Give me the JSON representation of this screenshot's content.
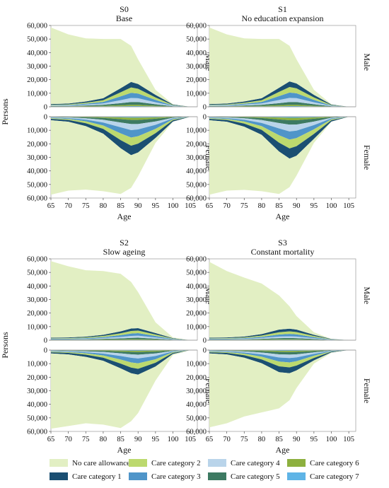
{
  "chart_data": {
    "type": "area",
    "layout": "2x2 panels, each split into Male (top, upward) and Female (bottom, downward) stacked areas",
    "x": [
      65,
      70,
      75,
      80,
      85,
      88,
      90,
      95,
      100,
      105
    ],
    "xticks": [
      65,
      70,
      75,
      80,
      85,
      90,
      95,
      100,
      105
    ],
    "xlabel": "Age",
    "ylabel": "Persons",
    "ylim": [
      0,
      60000
    ],
    "yticks": [
      0,
      10000,
      20000,
      30000,
      40000,
      50000,
      60000
    ],
    "ytick_labels": [
      "0",
      "10,000",
      "20,000",
      "30,000",
      "40,000",
      "50,000",
      "60,000"
    ],
    "sex_labels": {
      "male": "Male",
      "female": "Female"
    },
    "grid": false,
    "legend_position": "bottom",
    "legend": [
      {
        "key": "none",
        "label": "No care allowance",
        "color": "#e2efc3"
      },
      {
        "key": "c1",
        "label": "Care category 1",
        "color": "#1b4f72"
      },
      {
        "key": "c2",
        "label": "Care category 2",
        "color": "#bcd96e"
      },
      {
        "key": "c3",
        "label": "Care category 3",
        "color": "#4f95c9"
      },
      {
        "key": "c4",
        "label": "Care category 4",
        "color": "#b9d4ea"
      },
      {
        "key": "c5",
        "label": "Care category 5",
        "color": "#3d7a62"
      },
      {
        "key": "c6",
        "label": "Care category 6",
        "color": "#8db03f"
      },
      {
        "key": "c7",
        "label": "Care category 7",
        "color": "#5fb4e6"
      }
    ],
    "stack_order": [
      "c7",
      "c6",
      "c5",
      "c4",
      "c3",
      "c2",
      "c1",
      "none"
    ],
    "panels": [
      {
        "code": "S0",
        "name": "Base",
        "male": {
          "c1": [
            500,
            600,
            900,
            1500,
            3000,
            4000,
            3500,
            1900,
            400,
            0
          ],
          "c2": [
            300,
            400,
            700,
            1200,
            3000,
            4000,
            3500,
            1800,
            300,
            0
          ],
          "c3": [
            300,
            400,
            700,
            1100,
            2800,
            3800,
            3500,
            1800,
            300,
            0
          ],
          "c4": [
            300,
            400,
            600,
            1000,
            2200,
            3000,
            2800,
            1400,
            300,
            0
          ],
          "c5": [
            300,
            300,
            500,
            800,
            1500,
            2000,
            2000,
            1100,
            200,
            0
          ],
          "c6": [
            200,
            200,
            300,
            400,
            800,
            1000,
            1000,
            500,
            100,
            0
          ],
          "c7": [
            100,
            100,
            200,
            300,
            400,
            500,
            500,
            300,
            100,
            0
          ],
          "none": [
            56500,
            51000,
            46600,
            43700,
            36300,
            26700,
            18200,
            3700,
            200,
            0
          ]
        },
        "female": {
          "c1": [
            1000,
            1300,
            2200,
            3500,
            6000,
            7000,
            6500,
            3500,
            1000,
            0
          ],
          "c2": [
            500,
            700,
            1400,
            2500,
            5000,
            6000,
            5500,
            3200,
            700,
            0
          ],
          "c3": [
            400,
            600,
            1200,
            2200,
            4500,
            5500,
            5000,
            3000,
            600,
            0
          ],
          "c4": [
            300,
            500,
            1000,
            2000,
            3500,
            4500,
            4000,
            2500,
            500,
            0
          ],
          "c5": [
            200,
            300,
            700,
            1400,
            2500,
            3000,
            3000,
            2000,
            400,
            0
          ],
          "c6": [
            100,
            200,
            300,
            600,
            1300,
            1700,
            1700,
            1000,
            300,
            0
          ],
          "c7": [
            100,
            100,
            200,
            300,
            500,
            700,
            700,
            500,
            100,
            0
          ],
          "none": [
            54900,
            50800,
            46800,
            42500,
            33700,
            24100,
            17600,
            3600,
            200,
            0
          ]
        }
      },
      {
        "code": "S1",
        "name": "No education expansion",
        "male": {
          "c1": [
            500,
            600,
            900,
            1500,
            3000,
            4100,
            3600,
            1900,
            400,
            0
          ],
          "c2": [
            300,
            400,
            700,
            1200,
            3100,
            4100,
            3600,
            1800,
            300,
            0
          ],
          "c3": [
            300,
            400,
            700,
            1100,
            2900,
            3900,
            3600,
            1800,
            300,
            0
          ],
          "c4": [
            300,
            400,
            600,
            1000,
            2300,
            3100,
            2900,
            1400,
            300,
            0
          ],
          "c5": [
            300,
            300,
            500,
            800,
            1500,
            2000,
            2000,
            1100,
            200,
            0
          ],
          "c6": [
            200,
            200,
            300,
            400,
            800,
            1000,
            1000,
            500,
            100,
            0
          ],
          "c7": [
            100,
            100,
            200,
            300,
            400,
            500,
            500,
            300,
            100,
            0
          ],
          "none": [
            56500,
            51000,
            46600,
            43700,
            36000,
            26300,
            17800,
            3700,
            200,
            0
          ]
        },
        "female": {
          "c1": [
            1000,
            1300,
            2300,
            3700,
            6500,
            7500,
            7000,
            3700,
            1000,
            0
          ],
          "c2": [
            500,
            700,
            1500,
            2700,
            5500,
            6500,
            6000,
            3400,
            700,
            0
          ],
          "c3": [
            400,
            600,
            1300,
            2400,
            5000,
            6000,
            5500,
            3100,
            600,
            0
          ],
          "c4": [
            300,
            500,
            1100,
            2100,
            4000,
            5000,
            4500,
            2600,
            500,
            0
          ],
          "c5": [
            200,
            300,
            700,
            1500,
            2700,
            3300,
            3200,
            2100,
            400,
            0
          ],
          "c6": [
            100,
            200,
            300,
            700,
            1400,
            1800,
            1800,
            1000,
            300,
            0
          ],
          "c7": [
            100,
            100,
            200,
            300,
            600,
            800,
            800,
            500,
            100,
            0
          ],
          "none": [
            54900,
            50800,
            46600,
            41600,
            31300,
            21100,
            14700,
            2900,
            200,
            0
          ]
        }
      },
      {
        "code": "S2",
        "name": "Slow ageing",
        "male": {
          "c1": [
            400,
            500,
            600,
            900,
            1400,
            1800,
            1800,
            1100,
            300,
            0
          ],
          "c2": [
            300,
            400,
            500,
            800,
            1400,
            1900,
            1900,
            1100,
            300,
            0
          ],
          "c3": [
            300,
            300,
            500,
            700,
            1300,
            1800,
            1900,
            1100,
            300,
            0
          ],
          "c4": [
            300,
            300,
            400,
            600,
            1100,
            1400,
            1500,
            900,
            200,
            0
          ],
          "c5": [
            200,
            200,
            300,
            500,
            700,
            900,
            1000,
            600,
            200,
            0
          ],
          "c6": [
            200,
            200,
            200,
            300,
            400,
            500,
            500,
            300,
            100,
            0
          ],
          "c7": [
            100,
            100,
            100,
            200,
            200,
            300,
            300,
            200,
            100,
            0
          ],
          "none": [
            56500,
            52500,
            49000,
            47000,
            42500,
            34400,
            26600,
            7900,
            500,
            0
          ]
        },
        "female": {
          "c1": [
            900,
            1100,
            1600,
            2300,
            3500,
            4200,
            4300,
            2800,
            800,
            0
          ],
          "c2": [
            500,
            600,
            1000,
            1600,
            3000,
            3800,
            4000,
            2500,
            600,
            0
          ],
          "c3": [
            400,
            500,
            800,
            1400,
            2600,
            3400,
            3600,
            2400,
            500,
            0
          ],
          "c4": [
            300,
            400,
            700,
            1200,
            2000,
            2600,
            2800,
            1900,
            400,
            0
          ],
          "c5": [
            200,
            300,
            500,
            800,
            1300,
            1700,
            1900,
            1400,
            300,
            0
          ],
          "c6": [
            100,
            200,
            200,
            400,
            700,
            900,
            1000,
            700,
            200,
            0
          ],
          "c7": [
            100,
            100,
            200,
            200,
            400,
            500,
            500,
            400,
            100,
            0
          ],
          "none": [
            55500,
            52800,
            49000,
            47100,
            44000,
            35400,
            28400,
            10400,
            800,
            0
          ]
        }
      },
      {
        "code": "S3",
        "name": "Constant mortality",
        "male": {
          "c1": [
            400,
            500,
            700,
            1100,
            1900,
            2000,
            1800,
            900,
            200,
            0
          ],
          "c2": [
            300,
            400,
            500,
            900,
            1700,
            1900,
            1700,
            800,
            200,
            0
          ],
          "c3": [
            300,
            300,
            500,
            800,
            1500,
            1700,
            1600,
            800,
            200,
            0
          ],
          "c4": [
            300,
            300,
            400,
            700,
            1200,
            1300,
            1200,
            600,
            100,
            0
          ],
          "c5": [
            200,
            200,
            300,
            500,
            800,
            900,
            800,
            500,
            100,
            0
          ],
          "c6": [
            200,
            200,
            200,
            300,
            400,
            400,
            400,
            200,
            50,
            0
          ],
          "c7": [
            100,
            100,
            100,
            200,
            300,
            300,
            300,
            200,
            50,
            0
          ],
          "none": [
            56000,
            49000,
            43500,
            37300,
            25200,
            16500,
            10000,
            1800,
            100,
            0
          ]
        },
        "female": {
          "c1": [
            900,
            1100,
            1800,
            2800,
            4300,
            4300,
            3600,
            1800,
            500,
            0
          ],
          "c2": [
            500,
            600,
            1100,
            2000,
            3500,
            3700,
            3200,
            1600,
            300,
            0
          ],
          "c3": [
            400,
            500,
            900,
            1700,
            3000,
            3200,
            2800,
            1400,
            300,
            0
          ],
          "c4": [
            300,
            400,
            800,
            1400,
            2400,
            2600,
            2300,
            1100,
            200,
            0
          ],
          "c5": [
            200,
            300,
            500,
            1000,
            1700,
            1800,
            1700,
            900,
            200,
            0
          ],
          "c6": [
            100,
            200,
            300,
            500,
            900,
            1000,
            900,
            500,
            100,
            0
          ],
          "c7": [
            100,
            100,
            200,
            300,
            500,
            500,
            500,
            300,
            100,
            0
          ],
          "none": [
            54500,
            50800,
            43400,
            36300,
            26700,
            19900,
            13000,
            2400,
            300,
            0
          ]
        }
      }
    ]
  }
}
